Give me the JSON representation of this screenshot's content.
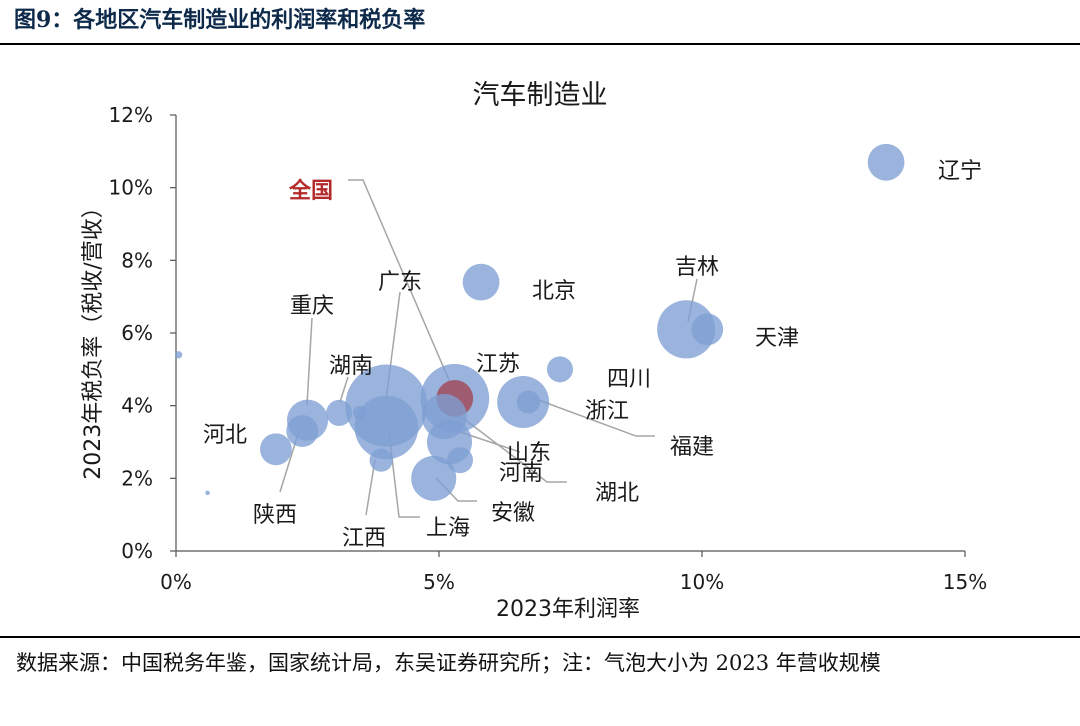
{
  "figure_title": "图9：各地区汽车制造业的利润率和税负率",
  "source_note": "数据来源：中国税务年鉴，国家统计局，东吴证券研究所；注：气泡大小为 2023 年营收规模",
  "colors": {
    "bubble": "#7f9fd4",
    "highlight": "#a05566",
    "highlight_label": "#b22a2a",
    "leader": "#a6a6a6"
  },
  "chart_data": {
    "type": "scatter",
    "title": "汽车制造业",
    "xlabel": "2023年利润率",
    "ylabel": "2023年税负率（税收/营收）",
    "xlim": [
      0,
      15
    ],
    "ylim": [
      0,
      12
    ],
    "xticks": [
      0,
      5,
      10,
      15
    ],
    "xtick_labels": [
      "0%",
      "5%",
      "10%",
      "15%"
    ],
    "yticks": [
      0,
      2,
      4,
      6,
      8,
      10,
      12
    ],
    "ytick_labels": [
      "0%",
      "2%",
      "4%",
      "6%",
      "8%",
      "10%",
      "12%"
    ],
    "grid": false,
    "points": [
      {
        "name": "广东",
        "x": 4.0,
        "y": 4.0,
        "size": 10
      },
      {
        "name": "上海",
        "x": 4.0,
        "y": 3.4,
        "size": 6
      },
      {
        "name": "江苏",
        "x": 5.3,
        "y": 4.2,
        "size": 7
      },
      {
        "name": "全国",
        "x": 5.3,
        "y": 4.2,
        "size": 2,
        "highlight": true
      },
      {
        "name": "湖北",
        "x": 5.1,
        "y": 3.7,
        "size": 3
      },
      {
        "name": "山东",
        "x": 5.2,
        "y": 3.0,
        "size": 3
      },
      {
        "name": "河南",
        "x": 5.4,
        "y": 2.5,
        "size": 1
      },
      {
        "name": "安徽",
        "x": 4.9,
        "y": 2.0,
        "size": 3
      },
      {
        "name": "江西",
        "x": 3.9,
        "y": 2.5,
        "size": 0.8
      },
      {
        "name": "浙江",
        "x": 6.6,
        "y": 4.1,
        "size": 4
      },
      {
        "name": "福建",
        "x": 6.7,
        "y": 4.1,
        "size": 0.8
      },
      {
        "name": "北京",
        "x": 5.8,
        "y": 7.4,
        "size": 2
      },
      {
        "name": "四川",
        "x": 7.3,
        "y": 5.0,
        "size": 1
      },
      {
        "name": "吉林",
        "x": 9.7,
        "y": 6.1,
        "size": 5
      },
      {
        "name": "天津",
        "x": 10.1,
        "y": 6.1,
        "size": 1.5
      },
      {
        "name": "辽宁",
        "x": 13.5,
        "y": 10.7,
        "size": 2
      },
      {
        "name": "重庆",
        "x": 2.5,
        "y": 3.6,
        "size": 2.5
      },
      {
        "name": "湖南",
        "x": 3.1,
        "y": 3.8,
        "size": 1
      },
      {
        "name": "河北",
        "x": 2.4,
        "y": 3.3,
        "size": 1.5
      },
      {
        "name": "陕西",
        "x": 1.9,
        "y": 2.8,
        "size": 1.5
      },
      {
        "name": "",
        "x": 3.5,
        "y": 3.8,
        "size": 0.3
      },
      {
        "name": "",
        "x": 0.05,
        "y": 5.4,
        "size": 0.08
      },
      {
        "name": "",
        "x": 0.6,
        "y": 1.6,
        "size": 0.03
      }
    ]
  }
}
